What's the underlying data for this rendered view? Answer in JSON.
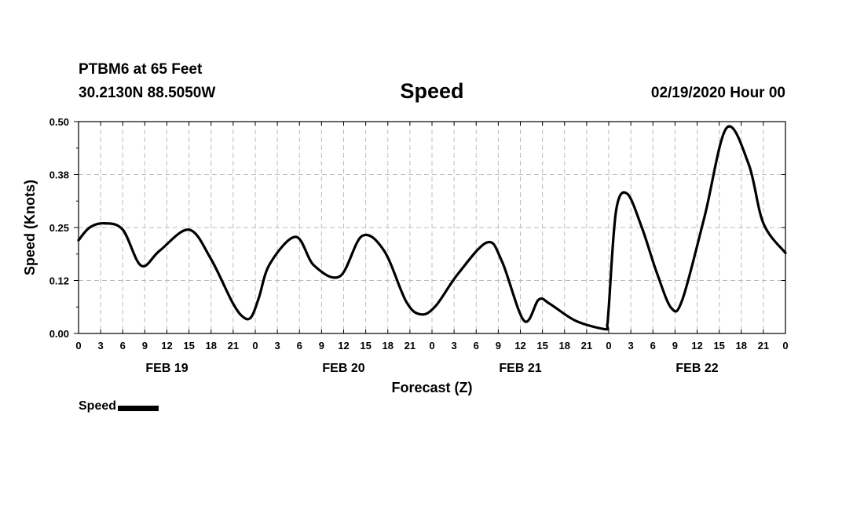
{
  "header": {
    "station": "PTBM6 at 65 Feet",
    "coords": "30.2130N 88.5050W",
    "title": "Speed",
    "datetime": "02/19/2020 Hour 00"
  },
  "legend": {
    "label": "Speed",
    "color": "#000000"
  },
  "chart_data": {
    "type": "line",
    "title": "Speed",
    "xlabel": "Forecast (Z)",
    "ylabel": "Speed (Knots)",
    "x_unit": "forecast hour from 02/19/2020 00Z",
    "xlim": [
      0,
      96
    ],
    "ylim": [
      0,
      0.5
    ],
    "yticks": [
      "0.00",
      "0.12",
      "0.25",
      "0.38",
      "0.50"
    ],
    "ytick_values": [
      0,
      0.125,
      0.25,
      0.375,
      0.5
    ],
    "xtick_labels": [
      "0",
      "3",
      "6",
      "9",
      "12",
      "15",
      "18",
      "21",
      "0",
      "3",
      "6",
      "9",
      "12",
      "15",
      "18",
      "21",
      "0",
      "3",
      "6",
      "9",
      "12",
      "15",
      "18",
      "21",
      "0",
      "3",
      "6",
      "9",
      "12",
      "15",
      "18",
      "21",
      "0"
    ],
    "day_labels": [
      "FEB 19",
      "FEB 20",
      "FEB 21",
      "FEB 22"
    ],
    "day_label_hours": [
      12,
      36,
      60,
      84
    ],
    "grid": true,
    "series": [
      {
        "name": "Speed",
        "color": "#000000",
        "x": [
          0,
          1.5,
          3.5,
          6,
          8.5,
          11,
          15,
          18,
          21,
          22.5,
          23.5,
          24.5,
          26,
          29.5,
          32,
          35.5,
          38.5,
          41.5,
          44.5,
          46.5,
          48.5,
          51.5,
          55.5,
          57.5,
          60.5,
          62.5,
          64,
          67.5,
          71.5,
          71.8,
          72,
          73,
          74.5,
          76.5,
          78.5,
          80.5,
          82,
          85,
          88,
          91,
          93,
          96
        ],
        "values": [
          0.22,
          0.25,
          0.26,
          0.245,
          0.16,
          0.195,
          0.245,
          0.175,
          0.07,
          0.037,
          0.04,
          0.085,
          0.165,
          0.228,
          0.16,
          0.135,
          0.23,
          0.195,
          0.075,
          0.045,
          0.065,
          0.14,
          0.215,
          0.17,
          0.03,
          0.08,
          0.07,
          0.03,
          0.01,
          0.02,
          0.06,
          0.29,
          0.33,
          0.25,
          0.145,
          0.06,
          0.08,
          0.275,
          0.485,
          0.4,
          0.26,
          0.19
        ]
      }
    ]
  }
}
